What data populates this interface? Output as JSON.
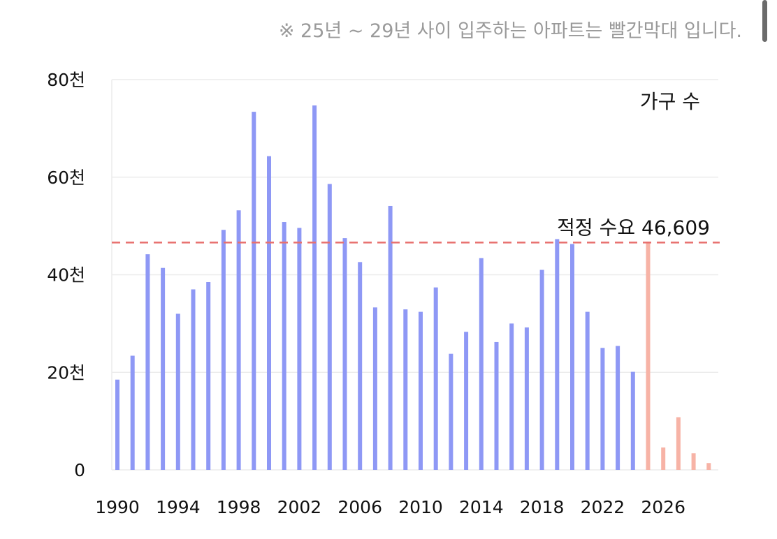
{
  "note": "※ 25년 ~ 29년 사이 입주하는 아파트는 빨간막대 입니다.",
  "colors": {
    "actual": "#8e98f5",
    "future": "#f7b3a6",
    "reference": "#e8706e",
    "grid": "#ececec"
  },
  "chart_data": {
    "type": "bar",
    "legend": "가구 수",
    "legend_position": "top-right",
    "x": [
      1990,
      1991,
      1992,
      1993,
      1994,
      1995,
      1996,
      1997,
      1998,
      1999,
      2000,
      2001,
      2002,
      2003,
      2004,
      2005,
      2006,
      2007,
      2008,
      2009,
      2010,
      2011,
      2012,
      2013,
      2014,
      2015,
      2016,
      2017,
      2018,
      2019,
      2020,
      2021,
      2022,
      2023,
      2024,
      2025,
      2026,
      2027,
      2028,
      2029
    ],
    "values": [
      18500,
      23400,
      44200,
      41400,
      32000,
      37000,
      38500,
      49200,
      53200,
      73400,
      64300,
      50800,
      49600,
      74700,
      58600,
      47500,
      42600,
      33300,
      54100,
      32900,
      32400,
      37400,
      23800,
      28300,
      43400,
      26200,
      30000,
      29200,
      41000,
      47300,
      46300,
      32400,
      25000,
      25400,
      20100,
      46800,
      4600,
      10800,
      3400,
      1400
    ],
    "future_from": 2025,
    "reference_line": {
      "value": 46609,
      "label": "적정 수요 46,609"
    },
    "ylim": [
      0,
      80000
    ],
    "yticks": [
      {
        "value": 0,
        "label": "0"
      },
      {
        "value": 20000,
        "label": "20천"
      },
      {
        "value": 40000,
        "label": "40천"
      },
      {
        "value": 60000,
        "label": "60천"
      },
      {
        "value": 80000,
        "label": "80천"
      }
    ],
    "xticks": [
      "1990",
      "1994",
      "1998",
      "2002",
      "2006",
      "2010",
      "2014",
      "2018",
      "2022",
      "2026"
    ],
    "grid": true
  }
}
